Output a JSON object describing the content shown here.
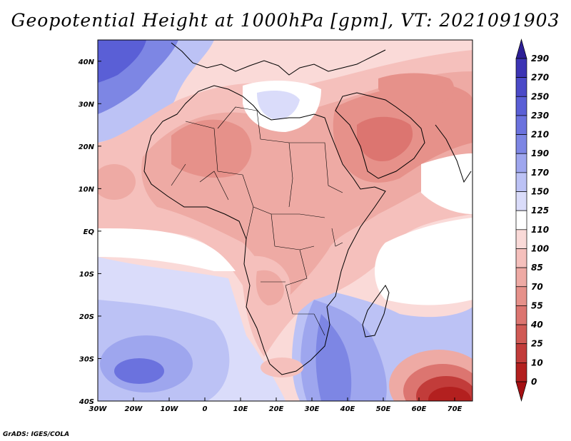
{
  "title": "Geopotential Height at 1000hPa [gpm], VT: 2021091903",
  "credit": "GrADS: IGES/COLA",
  "map": {
    "lon_range": [
      -30,
      75
    ],
    "lat_range": [
      -40,
      45
    ],
    "lon_ticks": [
      "30W",
      "20W",
      "10W",
      "0",
      "10E",
      "20E",
      "30E",
      "40E",
      "50E",
      "60E",
      "70E"
    ],
    "lat_ticks": [
      "40N",
      "30N",
      "20N",
      "10N",
      "EQ",
      "10S",
      "20S",
      "30S",
      "40S"
    ]
  },
  "colorbar": {
    "labels": [
      "290",
      "270",
      "250",
      "230",
      "210",
      "190",
      "170",
      "150",
      "125",
      "110",
      "100",
      "85",
      "70",
      "55",
      "40",
      "25",
      "10",
      "0"
    ],
    "colors": [
      "#2d1f96",
      "#3c34b4",
      "#4b4ac8",
      "#5a5fd6",
      "#6b72de",
      "#7d86e4",
      "#9ea6ee",
      "#bcc2f5",
      "#dadcfa",
      "#ffffff",
      "#fadad8",
      "#f5c0bc",
      "#eeaaa4",
      "#e6918a",
      "#dc7570",
      "#d05a55",
      "#c23c3a",
      "#b3201f",
      "#a50f12"
    ]
  },
  "field_colors": {
    "white": "#ffffff",
    "pink1": "#fadad8",
    "pink2": "#f5c0bc",
    "pink3": "#eeaaa4",
    "pink4": "#e6918a",
    "red1": "#dc7570",
    "red2": "#d05a55",
    "red3": "#c23c3a",
    "red4": "#b3201f",
    "blue1": "#dadcfa",
    "blue2": "#bcc2f5",
    "blue3": "#9ea6ee",
    "blue4": "#7d86e4",
    "blue5": "#6b72de",
    "blue6": "#5a5fd6"
  }
}
